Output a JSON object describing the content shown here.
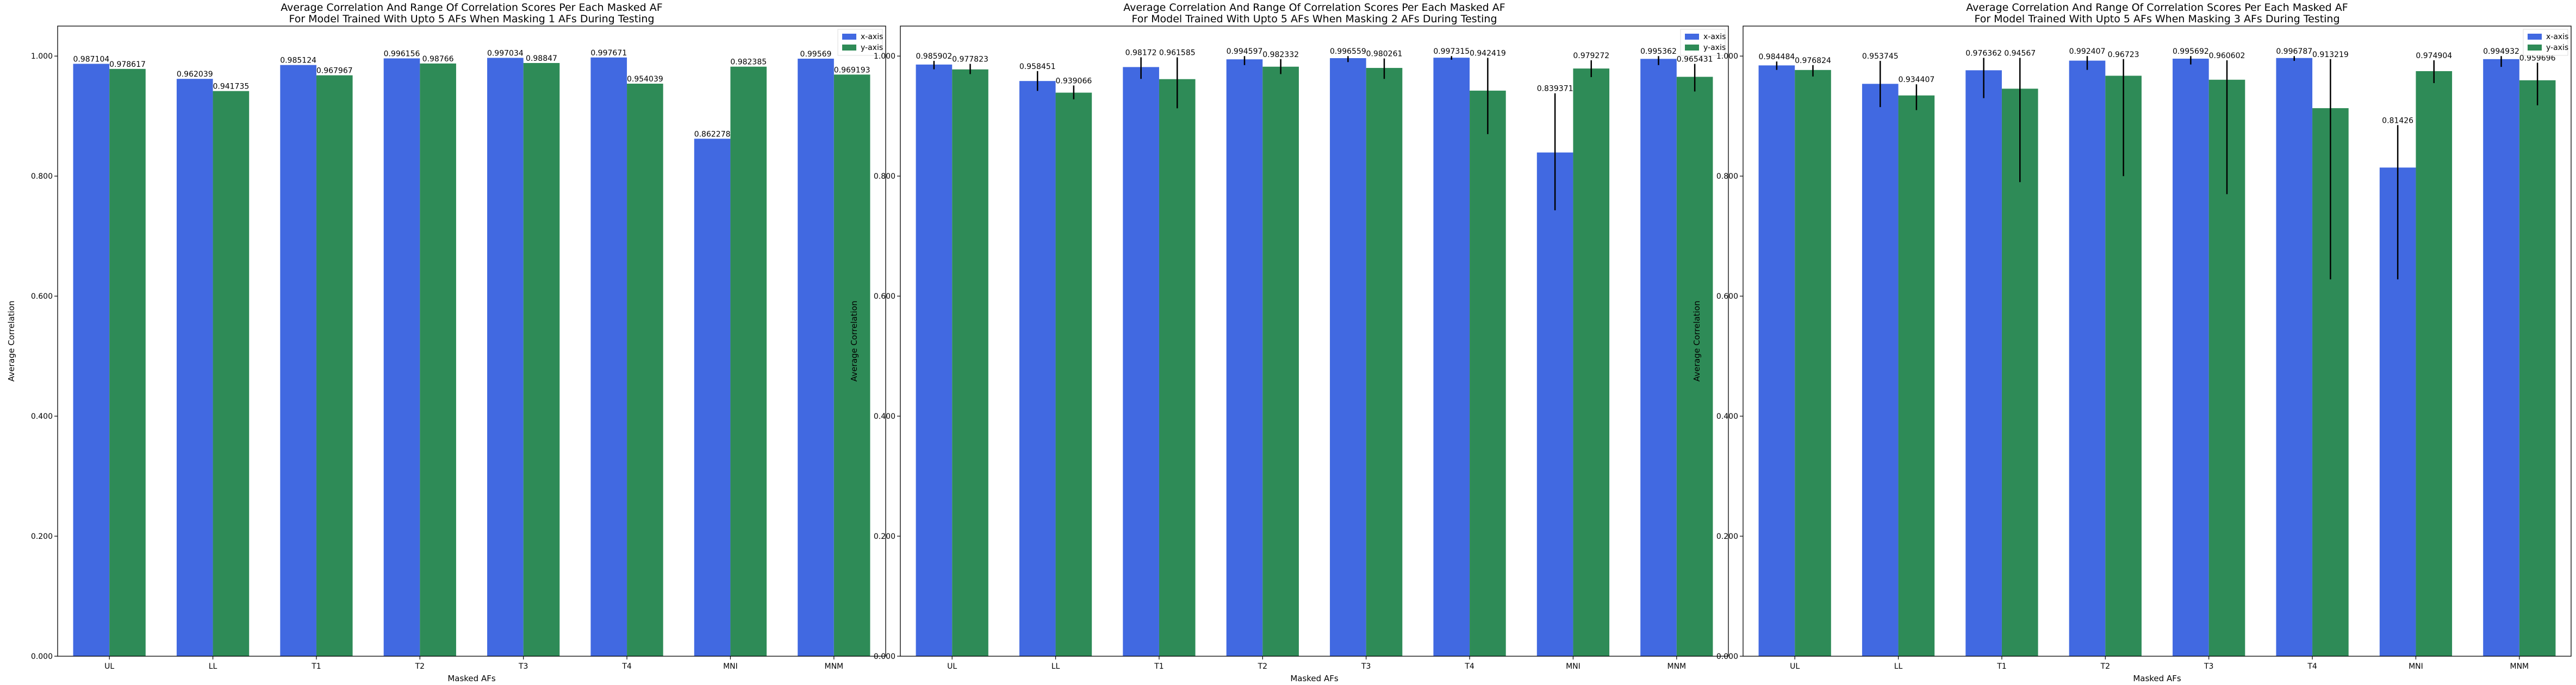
{
  "colors": {
    "x_axis": "#4169E1",
    "y_axis": "#2E8B57",
    "error_bar": "#000000",
    "frame": "#000000"
  },
  "chart_data": [
    {
      "type": "bar",
      "title": "Average Correlation And Range Of Correlation Scores Per Each Masked AF",
      "subtitle": "For Model Trained With Upto 5 AFs When Masking 1 AFs During Testing",
      "xlabel": "Masked AFs",
      "ylabel": "Average Correlation",
      "ylim": [
        0,
        1.05
      ],
      "yticks": [
        "0.000",
        "0.200",
        "0.400",
        "0.600",
        "0.800",
        "1.000"
      ],
      "categories": [
        "UL",
        "LL",
        "T1",
        "T2",
        "T3",
        "T4",
        "MNI",
        "MNM"
      ],
      "legend_position": "top-right",
      "series": [
        {
          "name": "x-axis",
          "values": [
            0.987104,
            0.962039,
            0.985124,
            0.996156,
            0.997034,
            0.997671,
            0.862278,
            0.99569
          ],
          "labels": [
            "0.987104",
            "0.962039",
            "0.985124",
            "0.996156",
            "0.997034",
            "0.997671",
            "0.862278",
            "0.99569"
          ],
          "err_low": [
            0.987104,
            0.962039,
            0.985124,
            0.996156,
            0.997034,
            0.997671,
            0.862278,
            0.99569
          ],
          "err_high": [
            0.987104,
            0.962039,
            0.985124,
            0.996156,
            0.997034,
            0.997671,
            0.862278,
            0.99569
          ]
        },
        {
          "name": "y-axis",
          "values": [
            0.978617,
            0.941735,
            0.967967,
            0.98766,
            0.98847,
            0.954039,
            0.982385,
            0.969193
          ],
          "labels": [
            "0.978617",
            "0.941735",
            "0.967967",
            "0.98766",
            "0.98847",
            "0.954039",
            "0.982385",
            "0.969193"
          ],
          "err_low": [
            0.978617,
            0.941735,
            0.967967,
            0.98766,
            0.98847,
            0.954039,
            0.982385,
            0.969193
          ],
          "err_high": [
            0.978617,
            0.941735,
            0.967967,
            0.98766,
            0.98847,
            0.954039,
            0.982385,
            0.969193
          ]
        }
      ]
    },
    {
      "type": "bar",
      "title": "Average Correlation And Range Of Correlation Scores Per Each Masked AF",
      "subtitle": "For Model Trained With Upto 5 AFs When Masking 2 AFs During Testing",
      "xlabel": "Masked AFs",
      "ylabel": "Average Correlation",
      "ylim": [
        0,
        1.05
      ],
      "yticks": [
        "0.000",
        "0.200",
        "0.400",
        "0.600",
        "0.800",
        "1.000"
      ],
      "categories": [
        "UL",
        "LL",
        "T1",
        "T2",
        "T3",
        "T4",
        "MNI",
        "MNM"
      ],
      "legend_position": "top-right",
      "series": [
        {
          "name": "x-axis",
          "values": [
            0.985902,
            0.958451,
            0.98172,
            0.994597,
            0.996559,
            0.997315,
            0.839371,
            0.995362
          ],
          "labels": [
            "0.985902",
            "0.958451",
            "0.98172",
            "0.994597",
            "0.996559",
            "0.997315",
            "0.839371",
            "0.995362"
          ],
          "err_low": [
            0.978,
            0.942,
            0.962,
            0.985,
            0.99,
            0.994,
            0.743,
            0.985
          ],
          "err_high": [
            0.992,
            0.975,
            0.998,
            1.0,
            1.0,
            1.0,
            0.938,
            1.0
          ]
        },
        {
          "name": "y-axis",
          "values": [
            0.977823,
            0.939066,
            0.961585,
            0.982332,
            0.980261,
            0.942419,
            0.979272,
            0.965431
          ],
          "labels": [
            "0.977823",
            "0.939066",
            "0.961585",
            "0.982332",
            "0.980261",
            "0.942419",
            "0.979272",
            "0.965431"
          ],
          "err_low": [
            0.97,
            0.928,
            0.913,
            0.97,
            0.962,
            0.87,
            0.965,
            0.941
          ],
          "err_high": [
            0.987,
            0.951,
            0.998,
            0.995,
            0.996,
            0.997,
            0.993,
            0.987
          ]
        }
      ]
    },
    {
      "type": "bar",
      "title": "Average Correlation And Range Of Correlation Scores Per Each Masked AF",
      "subtitle": "For Model Trained With Upto 5 AFs When Masking 3 AFs During Testing",
      "xlabel": "Masked AFs",
      "ylabel": "Average Correlation",
      "ylim": [
        0,
        1.05
      ],
      "yticks": [
        "0.000",
        "0.200",
        "0.400",
        "0.600",
        "0.800",
        "1.000"
      ],
      "categories": [
        "UL",
        "LL",
        "T1",
        "T2",
        "T3",
        "T4",
        "MNI",
        "MNM"
      ],
      "legend_position": "top-right",
      "series": [
        {
          "name": "x-axis",
          "values": [
            0.984484,
            0.953745,
            0.976362,
            0.992407,
            0.995692,
            0.996787,
            0.81426,
            0.994932
          ],
          "labels": [
            "0.984484",
            "0.953745",
            "0.976362",
            "0.992407",
            "0.995692",
            "0.996787",
            "0.81426",
            "0.994932"
          ],
          "err_low": [
            0.977,
            0.915,
            0.93,
            0.977,
            0.986,
            0.992,
            0.628,
            0.982
          ],
          "err_high": [
            0.991,
            0.992,
            0.997,
            1.0,
            1.0,
            1.0,
            0.885,
            1.0
          ]
        },
        {
          "name": "y-axis",
          "values": [
            0.976824,
            0.934407,
            0.94567,
            0.96723,
            0.960602,
            0.913219,
            0.974904,
            0.959696
          ],
          "labels": [
            "0.976824",
            "0.934407",
            "0.94567",
            "0.96723",
            "0.960602",
            "0.913219",
            "0.974904",
            "0.959696"
          ],
          "err_low": [
            0.966,
            0.91,
            0.79,
            0.8,
            0.77,
            0.628,
            0.955,
            0.918
          ],
          "err_high": [
            0.985,
            0.953,
            0.997,
            0.995,
            0.993,
            0.995,
            0.993,
            0.989
          ]
        }
      ]
    }
  ]
}
